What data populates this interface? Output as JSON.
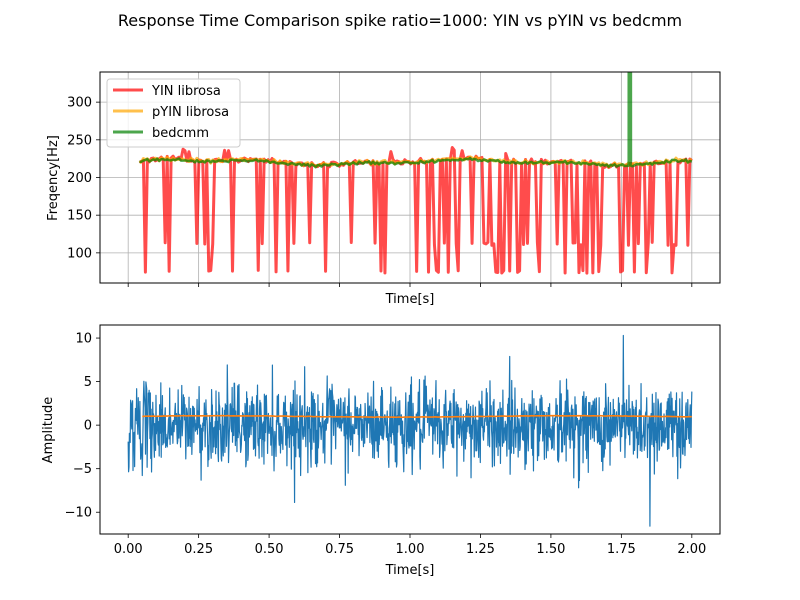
{
  "figure": {
    "title": "Response Time Comparison spike ratio=1000: YIN vs pYIN vs bedcmm"
  },
  "chart_data": [
    {
      "type": "line",
      "xlabel": "Time[s]",
      "ylabel": "Freqency[Hz]",
      "xlim": [
        -0.1,
        2.1
      ],
      "ylim": [
        60,
        340
      ],
      "x_ticks": [
        0,
        0.25,
        0.5,
        0.75,
        1.0,
        1.25,
        1.5,
        1.75,
        2.0
      ],
      "x_tick_labels_shown": false,
      "y_ticks": [
        100,
        150,
        200,
        250,
        300
      ],
      "y_tick_labels": [
        "100",
        "150",
        "200",
        "250",
        "300"
      ],
      "grid": true,
      "legend": "upper-left",
      "series": [
        {
          "name": "YIN librosa",
          "color": "#ff0000",
          "opacity": 0.7,
          "baseline_hz": 221,
          "dropout_levels_hz": [
            73,
            110
          ],
          "x_range": [
            0.04,
            2.0
          ]
        },
        {
          "name": "pYIN librosa",
          "color": "#ffa500",
          "opacity": 0.7,
          "baseline_hz": 221,
          "x_range": [
            0.04,
            2.0
          ]
        },
        {
          "name": "bedcmm",
          "color": "#008000",
          "opacity": 0.7,
          "baseline_hz": 220,
          "spike_x": 1.78,
          "x_range": [
            0.04,
            2.0
          ]
        }
      ]
    },
    {
      "type": "line",
      "xlabel": "Time[s]",
      "ylabel": "Amplitude",
      "xlim": [
        -0.1,
        2.1
      ],
      "ylim": [
        -12.5,
        11.5
      ],
      "x_ticks": [
        0,
        0.25,
        0.5,
        0.75,
        1.0,
        1.25,
        1.5,
        1.75,
        2.0
      ],
      "x_tick_labels": [
        "0.00",
        "0.25",
        "0.50",
        "0.75",
        "1.00",
        "1.25",
        "1.50",
        "1.75",
        "2.00"
      ],
      "y_ticks": [
        -10,
        -5,
        0,
        5,
        10
      ],
      "y_tick_labels": [
        "−10",
        "−5",
        "0",
        "5",
        "10"
      ],
      "grid": false,
      "series": [
        {
          "color": "#1f77b4",
          "x_range": [
            0,
            2.0
          ],
          "approx_std": 2.3,
          "max_value": 10.3,
          "min_value": -11.6
        },
        {
          "color": "#ff7f0e",
          "x_range": [
            0.05,
            2.0
          ],
          "approx_level": 1.0
        }
      ]
    }
  ]
}
